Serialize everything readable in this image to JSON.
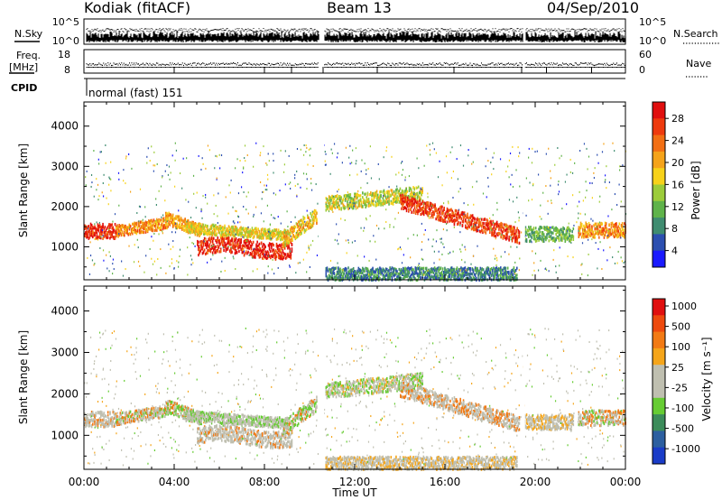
{
  "header": {
    "title": "Kodiak (fitACF)",
    "beam": "Beam 13",
    "date": "04/Sep/2010"
  },
  "top_panels": {
    "nsky_label": "N.Sky",
    "nsky_ticks": [
      "10^5",
      "10^0"
    ],
    "nsearch_label": "N.Search",
    "nsearch_ticks": [
      "10^5",
      "10^0"
    ],
    "freq_label_1": "Freq.",
    "freq_label_2": "[MHz]",
    "freq_ticks": [
      "18",
      "8"
    ],
    "nave_label": "Nave",
    "nave_ticks": [
      "60",
      "0"
    ],
    "cpid_label": "CPID",
    "cpid_text": "normal (fast) 151"
  },
  "chart_data": [
    {
      "type": "heatmap",
      "title": "",
      "ylabel": "Slant Range [km]",
      "xlabel": "Time UT",
      "x_ticks": [
        "00:00",
        "04:00",
        "08:00",
        "12:00",
        "16:00",
        "20:00",
        "00:00"
      ],
      "y_ticks": [
        "1000",
        "2000",
        "3000",
        "4000"
      ],
      "ylim": [
        180,
        4600
      ],
      "colorbar": {
        "label": "Power [dB]",
        "ticks": [
          "4",
          "8",
          "12",
          "16",
          "20",
          "24",
          "28"
        ],
        "colors": [
          "#1a1aff",
          "#2c4fb0",
          "#3f8c70",
          "#5fb34a",
          "#9ccc3a",
          "#f7d21a",
          "#f5a31a",
          "#f26f14",
          "#ee3a0e",
          "#e00f0f"
        ]
      }
    },
    {
      "type": "heatmap",
      "title": "",
      "ylabel": "Slant Range [km]",
      "xlabel": "Time UT",
      "x_ticks": [
        "00:00",
        "04:00",
        "08:00",
        "12:00",
        "16:00",
        "20:00",
        "00:00"
      ],
      "y_ticks": [
        "1000",
        "2000",
        "3000",
        "4000"
      ],
      "ylim": [
        180,
        4600
      ],
      "colorbar": {
        "label": "Velocity [m s⁻¹]",
        "ticks": [
          "1000",
          "500",
          "100",
          "25",
          "-25",
          "-100",
          "-500",
          "-1000"
        ],
        "colors": [
          "#1a3cc8",
          "#2c5fa0",
          "#3c8c5a",
          "#66cc33",
          "#bfbfb0",
          "#bfbfb0",
          "#f5a51a",
          "#f27a14",
          "#ee4a0e",
          "#e00f0f"
        ]
      }
    }
  ],
  "x_axis_label": "Time UT",
  "x_ticks": [
    "00:00",
    "04:00",
    "08:00",
    "12:00",
    "16:00",
    "20:00",
    "00:00"
  ]
}
